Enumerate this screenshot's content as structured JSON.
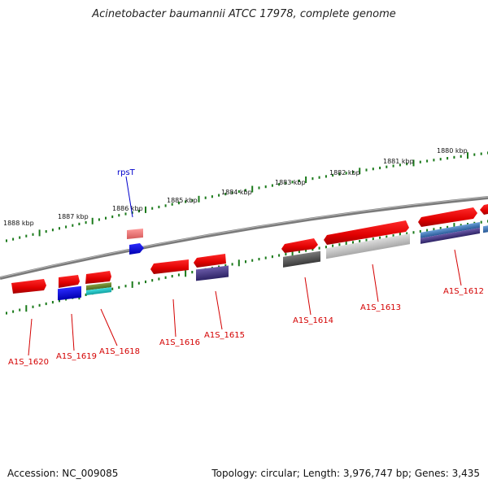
{
  "title": "Acinetobacter baumannii ATCC 17978, complete genome",
  "footer": {
    "accession": "Accession: NC_009085",
    "summary": "Topology: circular; Length: 3,976,747 bp; Genes: 3,435"
  },
  "scale": {
    "tick_labels": [
      "1888 kbp",
      "1887 kbp",
      "1886 kbp",
      "1885 kbp",
      "1884 kbp",
      "1883 kbp",
      "1882 kbp",
      "1881 kbp",
      "1880 kbp"
    ]
  },
  "genes": [
    {
      "label": "A1S_1620",
      "color": "#d40000"
    },
    {
      "label": "A1S_1619",
      "color": "#d40000"
    },
    {
      "label": "A1S_1618",
      "color": "#d40000"
    },
    {
      "label": "A1S_1616",
      "color": "#d40000"
    },
    {
      "label": "A1S_1615",
      "color": "#d40000"
    },
    {
      "label": "A1S_1614",
      "color": "#d40000"
    },
    {
      "label": "A1S_1613",
      "color": "#d40000"
    },
    {
      "label": "A1S_1612",
      "color": "#d40000"
    },
    {
      "label": "rpsT",
      "color": "#0000cc"
    }
  ],
  "colors": {
    "backbone": "#7a7a7a",
    "ticks": "#1a7a1a",
    "cds": "#ee0000"
  }
}
